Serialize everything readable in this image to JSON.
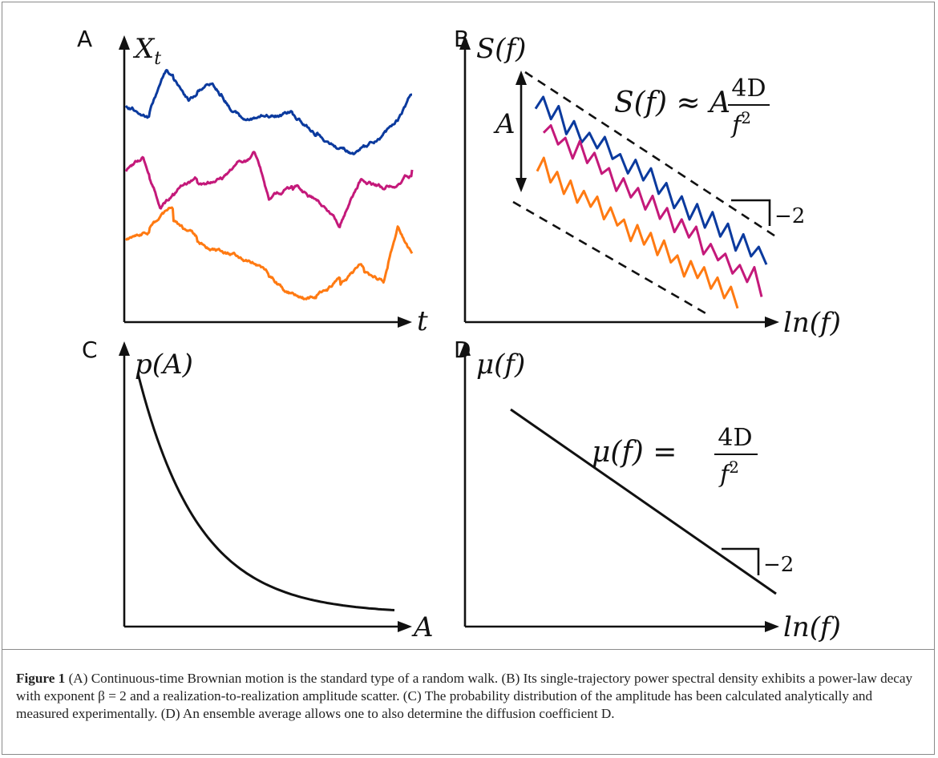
{
  "figure": {
    "panels": {
      "A": {
        "letter": "A",
        "ylabel": "X",
        "ylabel_sub": "t",
        "xlabel": "t",
        "traces": [
          {
            "color": "#0b3a9e"
          },
          {
            "color": "#c4197a"
          },
          {
            "color": "#ff7a12"
          }
        ]
      },
      "B": {
        "letter": "B",
        "ylabel": "S(f)",
        "xlabel": "ln(f)",
        "formula_lhs": "S(f) ≈ A",
        "formula_num": "4D",
        "formula_den": "f",
        "formula_den_exp": "2",
        "amplitude_label": "A",
        "slope_label": "−2",
        "series_colors": [
          "#0b3a9e",
          "#c4197a",
          "#ff7a12"
        ]
      },
      "C": {
        "letter": "C",
        "ylabel": "p(A)",
        "xlabel": "A"
      },
      "D": {
        "letter": "D",
        "ylabel": "μ(f)",
        "xlabel": "ln(f)",
        "formula_lhs": "μ(f) = ",
        "formula_num": "4D",
        "formula_den": "f",
        "formula_den_exp": "2",
        "slope_label": "−2"
      }
    },
    "caption": {
      "label": "Figure 1",
      "text": " (A) Continuous-time Brownian motion is the standard type of a random walk. (B) Its single-trajectory power spectral density exhibits a power-law decay with exponent β = 2 and a realization-to-realization amplitude scatter. (C) The probability distribution of the amplitude has been calculated analytically and measured experimentally. (D) An ensemble average allows one to also determine the diffusion coefficient D."
    }
  }
}
